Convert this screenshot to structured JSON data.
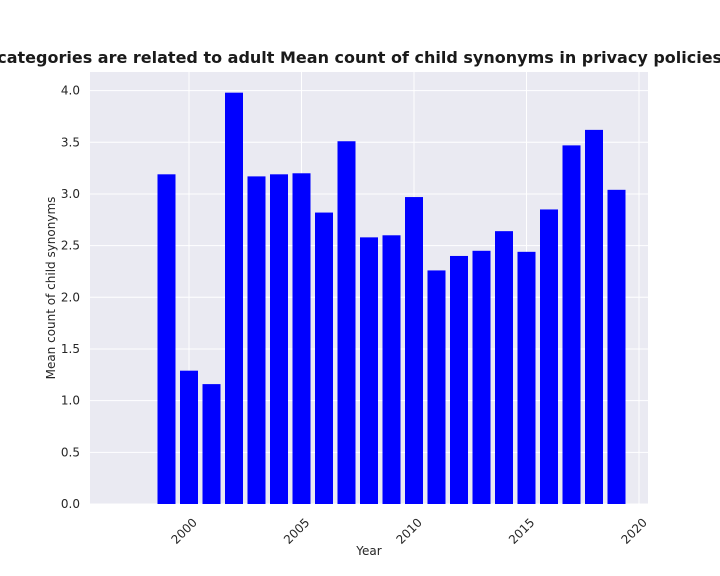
{
  "chart_data": {
    "type": "bar",
    "title": "when categories are related to adult Mean count of child synonyms in privacy policies by Year",
    "xlabel": "Year",
    "ylabel": "Mean count of child synonyms",
    "x": [
      1999,
      2000,
      2001,
      2002,
      2003,
      2004,
      2005,
      2006,
      2007,
      2008,
      2009,
      2010,
      2011,
      2012,
      2013,
      2014,
      2015,
      2016,
      2017,
      2018,
      2019
    ],
    "values": [
      3.19,
      1.29,
      1.16,
      3.98,
      3.17,
      3.19,
      3.2,
      2.82,
      3.51,
      2.58,
      2.6,
      2.97,
      2.26,
      2.4,
      2.45,
      2.64,
      2.44,
      2.85,
      3.47,
      3.62,
      3.04
    ],
    "xlim": [
      1995.6,
      2020.4
    ],
    "ylim": [
      0,
      4.18
    ],
    "xticks": [
      2000,
      2005,
      2010,
      2015,
      2020
    ],
    "xtick_labels": [
      "2000",
      "2005",
      "2010",
      "2015",
      "2020"
    ],
    "yticks": [
      0.0,
      0.5,
      1.0,
      1.5,
      2.0,
      2.5,
      3.0,
      3.5,
      4.0
    ],
    "ytick_labels": [
      "0.0",
      "0.5",
      "1.0",
      "1.5",
      "2.0",
      "2.5",
      "3.0",
      "3.5",
      "4.0"
    ],
    "bar_color": "#0000ff",
    "background_color": "#eaeaf2",
    "grid_color": "#ffffff",
    "grid": true,
    "legend": false
  }
}
